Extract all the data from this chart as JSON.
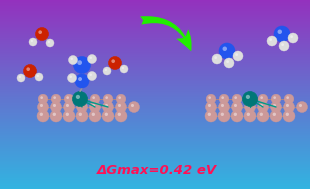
{
  "title": "ΔGmax=0.42 eV",
  "title_color": "#ff1155",
  "title_fontsize": 9.5,
  "figsize": [
    3.1,
    1.89
  ],
  "dpi": 100,
  "arrow_color": "#22ee00",
  "boron_color": "#cc9999",
  "boron_edge": "#aa7777",
  "ru_color": "#007777",
  "ru_edge": "#004444",
  "nitrogen_color": "#2255ee",
  "hydrogen_color": "#dddddd",
  "hydrogen_edge": "#999999",
  "oxygen_color": "#cc2200",
  "oxygen_edge": "#881100",
  "bond_color": "#999999"
}
